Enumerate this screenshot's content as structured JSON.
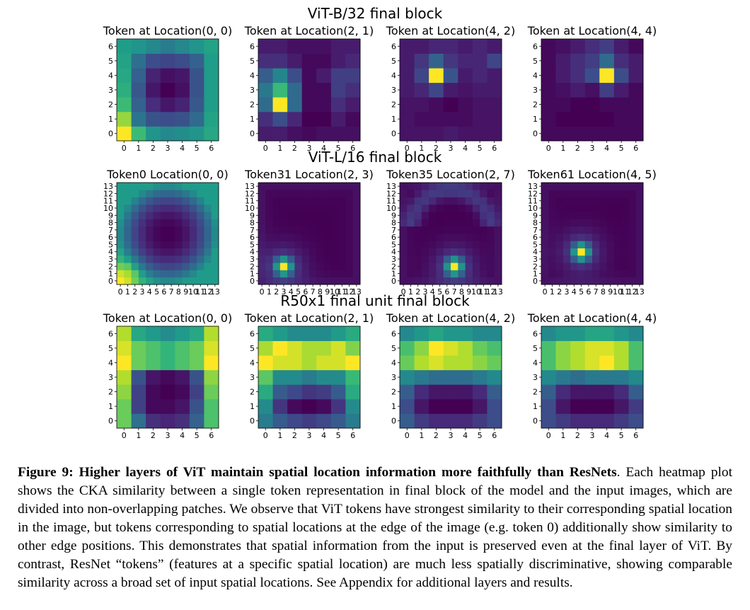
{
  "colors": {
    "colormap": "viridis",
    "stops": [
      "#440154",
      "#482878",
      "#3e4989",
      "#31688e",
      "#26828e",
      "#1f9e89",
      "#35b779",
      "#6ece58",
      "#b5de2b",
      "#fde725"
    ]
  },
  "caption": {
    "label": "Figure 9: Higher layers of ViT maintain spatial location information more faithfully than ResNets",
    "text": ". Each heatmap plot shows the CKA similarity between a single token representation in final block of the model and the input images, which are divided into non-overlapping patches. We observe that ViT tokens have strongest similarity to their corresponding spatial location in the image, but tokens corresponding to spatial locations at the edge of the image (e.g. token 0) additionally show similarity to other edge positions. This demonstrates that spatial information from the input is preserved even at the final layer of ViT. By contrast, ResNet “tokens” (features at a specific spatial location) are much less spatially discriminative, showing comparable similarity across a broad set of input spatial locations. See Appendix for additional layers and results."
  },
  "chart_data": [
    {
      "type": "heatmap",
      "title": "ViT-B/32 final block",
      "grid_size": 7,
      "color_scale": "viridis, min to max",
      "panels": [
        {
          "title": "Token at Location(0, 0)",
          "x_ticks": [
            "0",
            "1",
            "2",
            "3",
            "4",
            "5",
            "6"
          ],
          "y_ticks": [
            "0",
            "1",
            "2",
            "3",
            "4",
            "5",
            "6"
          ],
          "values": [
            [
              1.0,
              0.7,
              0.55,
              0.5,
              0.52,
              0.55,
              0.62
            ],
            [
              0.85,
              0.42,
              0.3,
              0.28,
              0.3,
              0.38,
              0.6
            ],
            [
              0.7,
              0.35,
              0.18,
              0.12,
              0.15,
              0.32,
              0.58
            ],
            [
              0.65,
              0.32,
              0.12,
              0.06,
              0.1,
              0.3,
              0.58
            ],
            [
              0.62,
              0.35,
              0.15,
              0.1,
              0.12,
              0.3,
              0.58
            ],
            [
              0.6,
              0.4,
              0.28,
              0.26,
              0.28,
              0.35,
              0.58
            ],
            [
              0.58,
              0.55,
              0.5,
              0.45,
              0.5,
              0.55,
              0.6
            ]
          ]
        },
        {
          "title": "Token at Location(2, 1)",
          "x_ticks": [
            "0",
            "1",
            "2",
            "3",
            "4",
            "5",
            "6"
          ],
          "y_ticks": [
            "0",
            "1",
            "2",
            "3",
            "4",
            "5",
            "6"
          ],
          "values": [
            [
              0.15,
              0.15,
              0.12,
              0.1,
              0.12,
              0.12,
              0.12
            ],
            [
              0.2,
              0.3,
              0.18,
              0.08,
              0.08,
              0.15,
              0.1
            ],
            [
              0.4,
              1.0,
              0.4,
              0.1,
              0.1,
              0.2,
              0.15
            ],
            [
              0.45,
              0.7,
              0.4,
              0.1,
              0.1,
              0.25,
              0.2
            ],
            [
              0.35,
              0.5,
              0.3,
              0.1,
              0.15,
              0.25,
              0.25
            ],
            [
              0.2,
              0.2,
              0.15,
              0.1,
              0.1,
              0.15,
              0.18
            ],
            [
              0.15,
              0.15,
              0.12,
              0.12,
              0.12,
              0.15,
              0.15
            ]
          ]
        },
        {
          "title": "Token at Location(4, 2)",
          "x_ticks": [
            "0",
            "1",
            "2",
            "3",
            "4",
            "5",
            "6"
          ],
          "y_ticks": [
            "0",
            "1",
            "2",
            "3",
            "4",
            "5",
            "6"
          ],
          "values": [
            [
              0.1,
              0.1,
              0.1,
              0.12,
              0.1,
              0.1,
              0.1
            ],
            [
              0.1,
              0.08,
              0.08,
              0.08,
              0.08,
              0.1,
              0.1
            ],
            [
              0.1,
              0.1,
              0.08,
              0.05,
              0.08,
              0.1,
              0.1
            ],
            [
              0.12,
              0.15,
              0.25,
              0.12,
              0.1,
              0.12,
              0.12
            ],
            [
              0.12,
              0.25,
              1.0,
              0.3,
              0.12,
              0.15,
              0.12
            ],
            [
              0.12,
              0.2,
              0.35,
              0.2,
              0.15,
              0.15,
              0.25
            ],
            [
              0.12,
              0.12,
              0.15,
              0.15,
              0.12,
              0.15,
              0.12
            ]
          ]
        },
        {
          "title": "Token at Location(4, 4)",
          "x_ticks": [
            "0",
            "1",
            "2",
            "3",
            "4",
            "5",
            "6"
          ],
          "y_ticks": [
            "0",
            "1",
            "2",
            "3",
            "4",
            "5",
            "6"
          ],
          "values": [
            [
              0.1,
              0.1,
              0.1,
              0.1,
              0.1,
              0.1,
              0.1
            ],
            [
              0.1,
              0.08,
              0.08,
              0.08,
              0.08,
              0.1,
              0.1
            ],
            [
              0.1,
              0.1,
              0.08,
              0.08,
              0.1,
              0.1,
              0.1
            ],
            [
              0.1,
              0.12,
              0.15,
              0.12,
              0.25,
              0.15,
              0.1
            ],
            [
              0.1,
              0.15,
              0.2,
              0.3,
              1.0,
              0.3,
              0.15
            ],
            [
              0.1,
              0.15,
              0.2,
              0.25,
              0.4,
              0.2,
              0.15
            ],
            [
              0.1,
              0.12,
              0.15,
              0.2,
              0.25,
              0.15,
              0.1
            ]
          ]
        }
      ]
    },
    {
      "type": "heatmap",
      "title": "ViT-L/16 final block",
      "grid_size": 14,
      "color_scale": "viridis, min to max",
      "panels": [
        {
          "title": "Token0 Location(0, 0)",
          "x_ticks": [
            "0",
            "1",
            "2",
            "3",
            "4",
            "5",
            "6",
            "7",
            "8",
            "9",
            "10",
            "11",
            "12",
            "13"
          ],
          "y_ticks": [
            "0",
            "1",
            "2",
            "3",
            "4",
            "5",
            "6",
            "7",
            "8",
            "9",
            "10",
            "11",
            "12",
            "13"
          ],
          "peak": [
            0,
            0
          ],
          "pattern": "edge-ring"
        },
        {
          "title": "Token31 Location(2, 3)",
          "x_ticks": [
            "0",
            "1",
            "2",
            "3",
            "4",
            "5",
            "6",
            "7",
            "8",
            "9",
            "10",
            "11",
            "12",
            "13"
          ],
          "y_ticks": [
            "0",
            "1",
            "2",
            "3",
            "4",
            "5",
            "6",
            "7",
            "8",
            "9",
            "10",
            "11",
            "12",
            "13"
          ],
          "peak": [
            3,
            2
          ],
          "pattern": "local-peak"
        },
        {
          "title": "Token35 Location(2, 7)",
          "x_ticks": [
            "0",
            "1",
            "2",
            "3",
            "4",
            "5",
            "6",
            "7",
            "8",
            "9",
            "10",
            "11",
            "12",
            "13"
          ],
          "y_ticks": [
            "0",
            "1",
            "2",
            "3",
            "4",
            "5",
            "6",
            "7",
            "8",
            "9",
            "10",
            "11",
            "12",
            "13"
          ],
          "peak": [
            7,
            2
          ],
          "pattern": "local-peak-with-arc"
        },
        {
          "title": "Token61 Location(4, 5)",
          "x_ticks": [
            "0",
            "1",
            "2",
            "3",
            "4",
            "5",
            "6",
            "7",
            "8",
            "9",
            "10",
            "11",
            "12",
            "13"
          ],
          "y_ticks": [
            "0",
            "1",
            "2",
            "3",
            "4",
            "5",
            "6",
            "7",
            "8",
            "9",
            "10",
            "11",
            "12",
            "13"
          ],
          "peak": [
            5,
            4
          ],
          "pattern": "local-peak"
        }
      ]
    },
    {
      "type": "heatmap",
      "title": "R50x1 final unit final block",
      "grid_size": 7,
      "color_scale": "viridis, min to max",
      "panels": [
        {
          "title": "Token at Location(0, 0)",
          "x_ticks": [
            "0",
            "1",
            "2",
            "3",
            "4",
            "5",
            "6"
          ],
          "y_ticks": [
            "0",
            "1",
            "2",
            "3",
            "4",
            "5",
            "6"
          ],
          "values": [
            [
              0.7,
              0.35,
              0.15,
              0.12,
              0.15,
              0.3,
              0.65
            ],
            [
              0.7,
              0.2,
              0.05,
              0.05,
              0.08,
              0.25,
              0.65
            ],
            [
              0.75,
              0.2,
              0.05,
              0.03,
              0.05,
              0.2,
              0.7
            ],
            [
              0.8,
              0.25,
              0.08,
              0.05,
              0.08,
              0.25,
              0.75
            ],
            [
              0.9,
              0.7,
              0.65,
              0.6,
              0.65,
              0.7,
              0.9
            ],
            [
              0.85,
              0.7,
              0.65,
              0.6,
              0.65,
              0.7,
              0.85
            ],
            [
              0.8,
              0.55,
              0.5,
              0.45,
              0.5,
              0.55,
              0.8
            ]
          ]
        },
        {
          "title": "Token at Location(2, 1)",
          "x_ticks": [
            "0",
            "1",
            "2",
            "3",
            "4",
            "5",
            "6"
          ],
          "y_ticks": [
            "0",
            "1",
            "2",
            "3",
            "4",
            "5",
            "6"
          ],
          "values": [
            [
              0.4,
              0.3,
              0.25,
              0.22,
              0.25,
              0.3,
              0.4
            ],
            [
              0.45,
              0.2,
              0.1,
              0.08,
              0.1,
              0.2,
              0.45
            ],
            [
              0.55,
              0.3,
              0.25,
              0.2,
              0.22,
              0.3,
              0.55
            ],
            [
              0.65,
              0.45,
              0.45,
              0.4,
              0.45,
              0.45,
              0.6
            ],
            [
              0.85,
              0.8,
              0.8,
              0.75,
              0.8,
              0.8,
              0.85
            ],
            [
              0.75,
              0.85,
              0.8,
              0.75,
              0.75,
              0.8,
              0.7
            ],
            [
              0.55,
              0.5,
              0.45,
              0.45,
              0.45,
              0.5,
              0.55
            ]
          ]
        },
        {
          "title": "Token at Location(4, 2)",
          "x_ticks": [
            "0",
            "1",
            "2",
            "3",
            "4",
            "5",
            "6"
          ],
          "y_ticks": [
            "0",
            "1",
            "2",
            "3",
            "4",
            "5",
            "6"
          ],
          "values": [
            [
              0.35,
              0.25,
              0.2,
              0.2,
              0.2,
              0.25,
              0.3
            ],
            [
              0.3,
              0.15,
              0.1,
              0.1,
              0.1,
              0.15,
              0.3
            ],
            [
              0.35,
              0.2,
              0.15,
              0.15,
              0.15,
              0.2,
              0.35
            ],
            [
              0.5,
              0.45,
              0.4,
              0.4,
              0.4,
              0.45,
              0.5
            ],
            [
              0.75,
              0.85,
              0.9,
              0.85,
              0.85,
              0.8,
              0.75
            ],
            [
              0.7,
              0.8,
              0.95,
              0.9,
              0.85,
              0.75,
              0.7
            ],
            [
              0.5,
              0.55,
              0.6,
              0.55,
              0.55,
              0.5,
              0.5
            ]
          ]
        },
        {
          "title": "Token at Location(4, 4)",
          "x_ticks": [
            "0",
            "1",
            "2",
            "3",
            "4",
            "5",
            "6"
          ],
          "y_ticks": [
            "0",
            "1",
            "2",
            "3",
            "4",
            "5",
            "6"
          ],
          "values": [
            [
              0.3,
              0.25,
              0.2,
              0.2,
              0.2,
              0.25,
              0.3
            ],
            [
              0.3,
              0.15,
              0.1,
              0.1,
              0.1,
              0.15,
              0.25
            ],
            [
              0.35,
              0.2,
              0.15,
              0.15,
              0.15,
              0.2,
              0.35
            ],
            [
              0.5,
              0.45,
              0.4,
              0.45,
              0.45,
              0.45,
              0.5
            ],
            [
              0.7,
              0.8,
              0.85,
              0.9,
              0.95,
              0.85,
              0.7
            ],
            [
              0.7,
              0.8,
              0.85,
              0.9,
              0.9,
              0.85,
              0.7
            ],
            [
              0.5,
              0.55,
              0.55,
              0.6,
              0.6,
              0.55,
              0.5
            ]
          ]
        }
      ]
    }
  ]
}
